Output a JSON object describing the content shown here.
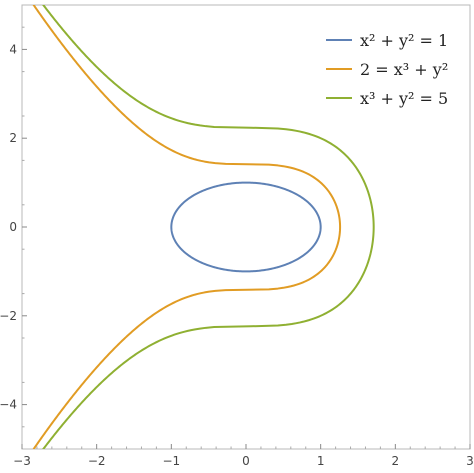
{
  "chart_data": {
    "type": "line",
    "title": "",
    "xlabel": "",
    "ylabel": "",
    "xlim": [
      -3.0,
      3.0
    ],
    "ylim": [
      -5.0,
      5.0
    ],
    "grid": false,
    "legend_position": "top-right",
    "xticks": [
      -3,
      -2,
      -1,
      0,
      1,
      2,
      3
    ],
    "yticks": [
      -4,
      -2,
      0,
      2,
      4
    ],
    "xtick_labels": [
      "−3",
      "−2",
      "−1",
      "0",
      "1",
      "2",
      "3"
    ],
    "ytick_labels": [
      "−4",
      "−2",
      "0",
      "2",
      "4"
    ],
    "series": [
      {
        "name": "x^2 + y^2 = 1",
        "legend": {
          "lhs": "x² + y²",
          "rhs": "= 1"
        },
        "color": "#5E81B5",
        "equation": {
          "type": "circle",
          "r": 1
        }
      },
      {
        "name": "2 = x^3 + y^2",
        "legend": {
          "lhs": "2 =",
          "rhs": "x³ + y²"
        },
        "color": "#E19C24",
        "equation": {
          "type": "cubic",
          "c": 2
        }
      },
      {
        "name": "x^3 + y^2 = 5",
        "legend": {
          "lhs": "x³ + y²",
          "rhs": "= 5"
        },
        "color": "#8FB032",
        "equation": {
          "type": "cubic",
          "c": 5
        }
      }
    ]
  }
}
